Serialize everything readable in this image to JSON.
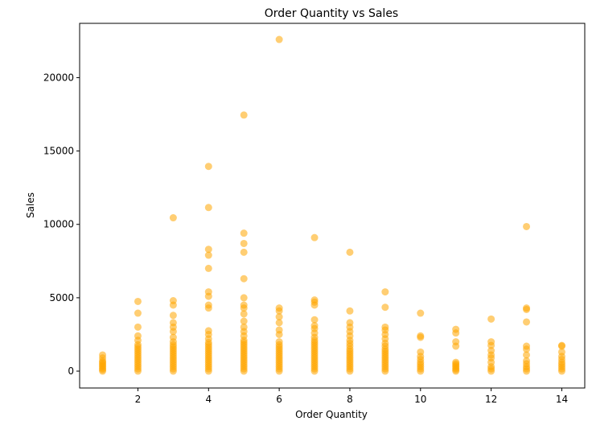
{
  "chart_data": {
    "type": "scatter",
    "title": "Order Quantity vs Sales",
    "xlabel": "Order Quantity",
    "ylabel": "Sales",
    "xlim": [
      0.35,
      14.65
    ],
    "ylim": [
      -1150,
      23700
    ],
    "xticks": [
      2,
      4,
      6,
      8,
      10,
      12,
      14
    ],
    "yticks": [
      0,
      5000,
      10000,
      15000,
      20000
    ],
    "grid": false,
    "marker_color": "#ffa500",
    "marker_alpha": 0.55,
    "points": [
      {
        "x": 1,
        "y": 0
      },
      {
        "x": 1,
        "y": 100
      },
      {
        "x": 1,
        "y": 200
      },
      {
        "x": 1,
        "y": 300
      },
      {
        "x": 1,
        "y": 400
      },
      {
        "x": 1,
        "y": 500
      },
      {
        "x": 1,
        "y": 600
      },
      {
        "x": 1,
        "y": 700
      },
      {
        "x": 1,
        "y": 900
      },
      {
        "x": 1,
        "y": 1100
      },
      {
        "x": 2,
        "y": 0
      },
      {
        "x": 2,
        "y": 150
      },
      {
        "x": 2,
        "y": 300
      },
      {
        "x": 2,
        "y": 450
      },
      {
        "x": 2,
        "y": 600
      },
      {
        "x": 2,
        "y": 750
      },
      {
        "x": 2,
        "y": 900
      },
      {
        "x": 2,
        "y": 1050
      },
      {
        "x": 2,
        "y": 1200
      },
      {
        "x": 2,
        "y": 1350
      },
      {
        "x": 2,
        "y": 1500
      },
      {
        "x": 2,
        "y": 1650
      },
      {
        "x": 2,
        "y": 1800
      },
      {
        "x": 2,
        "y": 2100
      },
      {
        "x": 2,
        "y": 2400
      },
      {
        "x": 2,
        "y": 3000
      },
      {
        "x": 2,
        "y": 3950
      },
      {
        "x": 2,
        "y": 4750
      },
      {
        "x": 3,
        "y": 0
      },
      {
        "x": 3,
        "y": 150
      },
      {
        "x": 3,
        "y": 300
      },
      {
        "x": 3,
        "y": 450
      },
      {
        "x": 3,
        "y": 600
      },
      {
        "x": 3,
        "y": 750
      },
      {
        "x": 3,
        "y": 900
      },
      {
        "x": 3,
        "y": 1050
      },
      {
        "x": 3,
        "y": 1200
      },
      {
        "x": 3,
        "y": 1350
      },
      {
        "x": 3,
        "y": 1500
      },
      {
        "x": 3,
        "y": 1650
      },
      {
        "x": 3,
        "y": 1800
      },
      {
        "x": 3,
        "y": 2000
      },
      {
        "x": 3,
        "y": 2300
      },
      {
        "x": 3,
        "y": 2700
      },
      {
        "x": 3,
        "y": 3000
      },
      {
        "x": 3,
        "y": 3300
      },
      {
        "x": 3,
        "y": 3800
      },
      {
        "x": 3,
        "y": 4500
      },
      {
        "x": 3,
        "y": 4800
      },
      {
        "x": 3,
        "y": 10450
      },
      {
        "x": 4,
        "y": 0
      },
      {
        "x": 4,
        "y": 150
      },
      {
        "x": 4,
        "y": 300
      },
      {
        "x": 4,
        "y": 450
      },
      {
        "x": 4,
        "y": 600
      },
      {
        "x": 4,
        "y": 750
      },
      {
        "x": 4,
        "y": 900
      },
      {
        "x": 4,
        "y": 1050
      },
      {
        "x": 4,
        "y": 1200
      },
      {
        "x": 4,
        "y": 1350
      },
      {
        "x": 4,
        "y": 1500
      },
      {
        "x": 4,
        "y": 1650
      },
      {
        "x": 4,
        "y": 1800
      },
      {
        "x": 4,
        "y": 1950
      },
      {
        "x": 4,
        "y": 2200
      },
      {
        "x": 4,
        "y": 2500
      },
      {
        "x": 4,
        "y": 2750
      },
      {
        "x": 4,
        "y": 4300
      },
      {
        "x": 4,
        "y": 4500
      },
      {
        "x": 4,
        "y": 5100
      },
      {
        "x": 4,
        "y": 5400
      },
      {
        "x": 4,
        "y": 7000
      },
      {
        "x": 4,
        "y": 7900
      },
      {
        "x": 4,
        "y": 8300
      },
      {
        "x": 4,
        "y": 11150
      },
      {
        "x": 4,
        "y": 13950
      },
      {
        "x": 5,
        "y": 0
      },
      {
        "x": 5,
        "y": 150
      },
      {
        "x": 5,
        "y": 300
      },
      {
        "x": 5,
        "y": 450
      },
      {
        "x": 5,
        "y": 600
      },
      {
        "x": 5,
        "y": 750
      },
      {
        "x": 5,
        "y": 900
      },
      {
        "x": 5,
        "y": 1050
      },
      {
        "x": 5,
        "y": 1200
      },
      {
        "x": 5,
        "y": 1350
      },
      {
        "x": 5,
        "y": 1500
      },
      {
        "x": 5,
        "y": 1650
      },
      {
        "x": 5,
        "y": 1800
      },
      {
        "x": 5,
        "y": 1950
      },
      {
        "x": 5,
        "y": 2100
      },
      {
        "x": 5,
        "y": 2400
      },
      {
        "x": 5,
        "y": 2700
      },
      {
        "x": 5,
        "y": 3000
      },
      {
        "x": 5,
        "y": 3400
      },
      {
        "x": 5,
        "y": 3900
      },
      {
        "x": 5,
        "y": 4300
      },
      {
        "x": 5,
        "y": 4500
      },
      {
        "x": 5,
        "y": 5000
      },
      {
        "x": 5,
        "y": 6300
      },
      {
        "x": 5,
        "y": 8100
      },
      {
        "x": 5,
        "y": 8700
      },
      {
        "x": 5,
        "y": 9400
      },
      {
        "x": 5,
        "y": 17450
      },
      {
        "x": 6,
        "y": 0
      },
      {
        "x": 6,
        "y": 150
      },
      {
        "x": 6,
        "y": 300
      },
      {
        "x": 6,
        "y": 450
      },
      {
        "x": 6,
        "y": 600
      },
      {
        "x": 6,
        "y": 750
      },
      {
        "x": 6,
        "y": 900
      },
      {
        "x": 6,
        "y": 1050
      },
      {
        "x": 6,
        "y": 1200
      },
      {
        "x": 6,
        "y": 1350
      },
      {
        "x": 6,
        "y": 1500
      },
      {
        "x": 6,
        "y": 1650
      },
      {
        "x": 6,
        "y": 1800
      },
      {
        "x": 6,
        "y": 2000
      },
      {
        "x": 6,
        "y": 2500
      },
      {
        "x": 6,
        "y": 2800
      },
      {
        "x": 6,
        "y": 3300
      },
      {
        "x": 6,
        "y": 3700
      },
      {
        "x": 6,
        "y": 4100
      },
      {
        "x": 6,
        "y": 4300
      },
      {
        "x": 6,
        "y": 22600
      },
      {
        "x": 7,
        "y": 0
      },
      {
        "x": 7,
        "y": 150
      },
      {
        "x": 7,
        "y": 300
      },
      {
        "x": 7,
        "y": 450
      },
      {
        "x": 7,
        "y": 600
      },
      {
        "x": 7,
        "y": 750
      },
      {
        "x": 7,
        "y": 900
      },
      {
        "x": 7,
        "y": 1050
      },
      {
        "x": 7,
        "y": 1200
      },
      {
        "x": 7,
        "y": 1350
      },
      {
        "x": 7,
        "y": 1500
      },
      {
        "x": 7,
        "y": 1650
      },
      {
        "x": 7,
        "y": 1800
      },
      {
        "x": 7,
        "y": 1950
      },
      {
        "x": 7,
        "y": 2100
      },
      {
        "x": 7,
        "y": 2300
      },
      {
        "x": 7,
        "y": 2600
      },
      {
        "x": 7,
        "y": 2900
      },
      {
        "x": 7,
        "y": 3100
      },
      {
        "x": 7,
        "y": 3500
      },
      {
        "x": 7,
        "y": 4500
      },
      {
        "x": 7,
        "y": 4700
      },
      {
        "x": 7,
        "y": 4850
      },
      {
        "x": 7,
        "y": 9100
      },
      {
        "x": 8,
        "y": 0
      },
      {
        "x": 8,
        "y": 150
      },
      {
        "x": 8,
        "y": 300
      },
      {
        "x": 8,
        "y": 450
      },
      {
        "x": 8,
        "y": 600
      },
      {
        "x": 8,
        "y": 750
      },
      {
        "x": 8,
        "y": 900
      },
      {
        "x": 8,
        "y": 1050
      },
      {
        "x": 8,
        "y": 1200
      },
      {
        "x": 8,
        "y": 1350
      },
      {
        "x": 8,
        "y": 1500
      },
      {
        "x": 8,
        "y": 1700
      },
      {
        "x": 8,
        "y": 1900
      },
      {
        "x": 8,
        "y": 2100
      },
      {
        "x": 8,
        "y": 2400
      },
      {
        "x": 8,
        "y": 2700
      },
      {
        "x": 8,
        "y": 3000
      },
      {
        "x": 8,
        "y": 3300
      },
      {
        "x": 8,
        "y": 4100
      },
      {
        "x": 8,
        "y": 8100
      },
      {
        "x": 9,
        "y": 0
      },
      {
        "x": 9,
        "y": 150
      },
      {
        "x": 9,
        "y": 300
      },
      {
        "x": 9,
        "y": 450
      },
      {
        "x": 9,
        "y": 600
      },
      {
        "x": 9,
        "y": 750
      },
      {
        "x": 9,
        "y": 900
      },
      {
        "x": 9,
        "y": 1050
      },
      {
        "x": 9,
        "y": 1200
      },
      {
        "x": 9,
        "y": 1350
      },
      {
        "x": 9,
        "y": 1500
      },
      {
        "x": 9,
        "y": 1700
      },
      {
        "x": 9,
        "y": 1900
      },
      {
        "x": 9,
        "y": 2200
      },
      {
        "x": 9,
        "y": 2500
      },
      {
        "x": 9,
        "y": 2800
      },
      {
        "x": 9,
        "y": 3000
      },
      {
        "x": 9,
        "y": 4350
      },
      {
        "x": 9,
        "y": 5400
      },
      {
        "x": 10,
        "y": 0
      },
      {
        "x": 10,
        "y": 150
      },
      {
        "x": 10,
        "y": 300
      },
      {
        "x": 10,
        "y": 450
      },
      {
        "x": 10,
        "y": 600
      },
      {
        "x": 10,
        "y": 800
      },
      {
        "x": 10,
        "y": 1000
      },
      {
        "x": 10,
        "y": 1300
      },
      {
        "x": 10,
        "y": 2300
      },
      {
        "x": 10,
        "y": 2400
      },
      {
        "x": 10,
        "y": 3950
      },
      {
        "x": 11,
        "y": 0
      },
      {
        "x": 11,
        "y": 100
      },
      {
        "x": 11,
        "y": 200
      },
      {
        "x": 11,
        "y": 300
      },
      {
        "x": 11,
        "y": 400
      },
      {
        "x": 11,
        "y": 500
      },
      {
        "x": 11,
        "y": 600
      },
      {
        "x": 11,
        "y": 1700
      },
      {
        "x": 11,
        "y": 2000
      },
      {
        "x": 11,
        "y": 2600
      },
      {
        "x": 11,
        "y": 2850
      },
      {
        "x": 12,
        "y": 0
      },
      {
        "x": 12,
        "y": 150
      },
      {
        "x": 12,
        "y": 300
      },
      {
        "x": 12,
        "y": 600
      },
      {
        "x": 12,
        "y": 900
      },
      {
        "x": 12,
        "y": 1100
      },
      {
        "x": 12,
        "y": 1400
      },
      {
        "x": 12,
        "y": 1750
      },
      {
        "x": 12,
        "y": 2000
      },
      {
        "x": 12,
        "y": 3550
      },
      {
        "x": 13,
        "y": 0
      },
      {
        "x": 13,
        "y": 150
      },
      {
        "x": 13,
        "y": 300
      },
      {
        "x": 13,
        "y": 500
      },
      {
        "x": 13,
        "y": 700
      },
      {
        "x": 13,
        "y": 1100
      },
      {
        "x": 13,
        "y": 1500
      },
      {
        "x": 13,
        "y": 1700
      },
      {
        "x": 13,
        "y": 3350
      },
      {
        "x": 13,
        "y": 4200
      },
      {
        "x": 13,
        "y": 4300
      },
      {
        "x": 13,
        "y": 9850
      },
      {
        "x": 14,
        "y": 0
      },
      {
        "x": 14,
        "y": 150
      },
      {
        "x": 14,
        "y": 300
      },
      {
        "x": 14,
        "y": 450
      },
      {
        "x": 14,
        "y": 600
      },
      {
        "x": 14,
        "y": 800
      },
      {
        "x": 14,
        "y": 1000
      },
      {
        "x": 14,
        "y": 1300
      },
      {
        "x": 14,
        "y": 1700
      },
      {
        "x": 14,
        "y": 1750
      }
    ]
  }
}
